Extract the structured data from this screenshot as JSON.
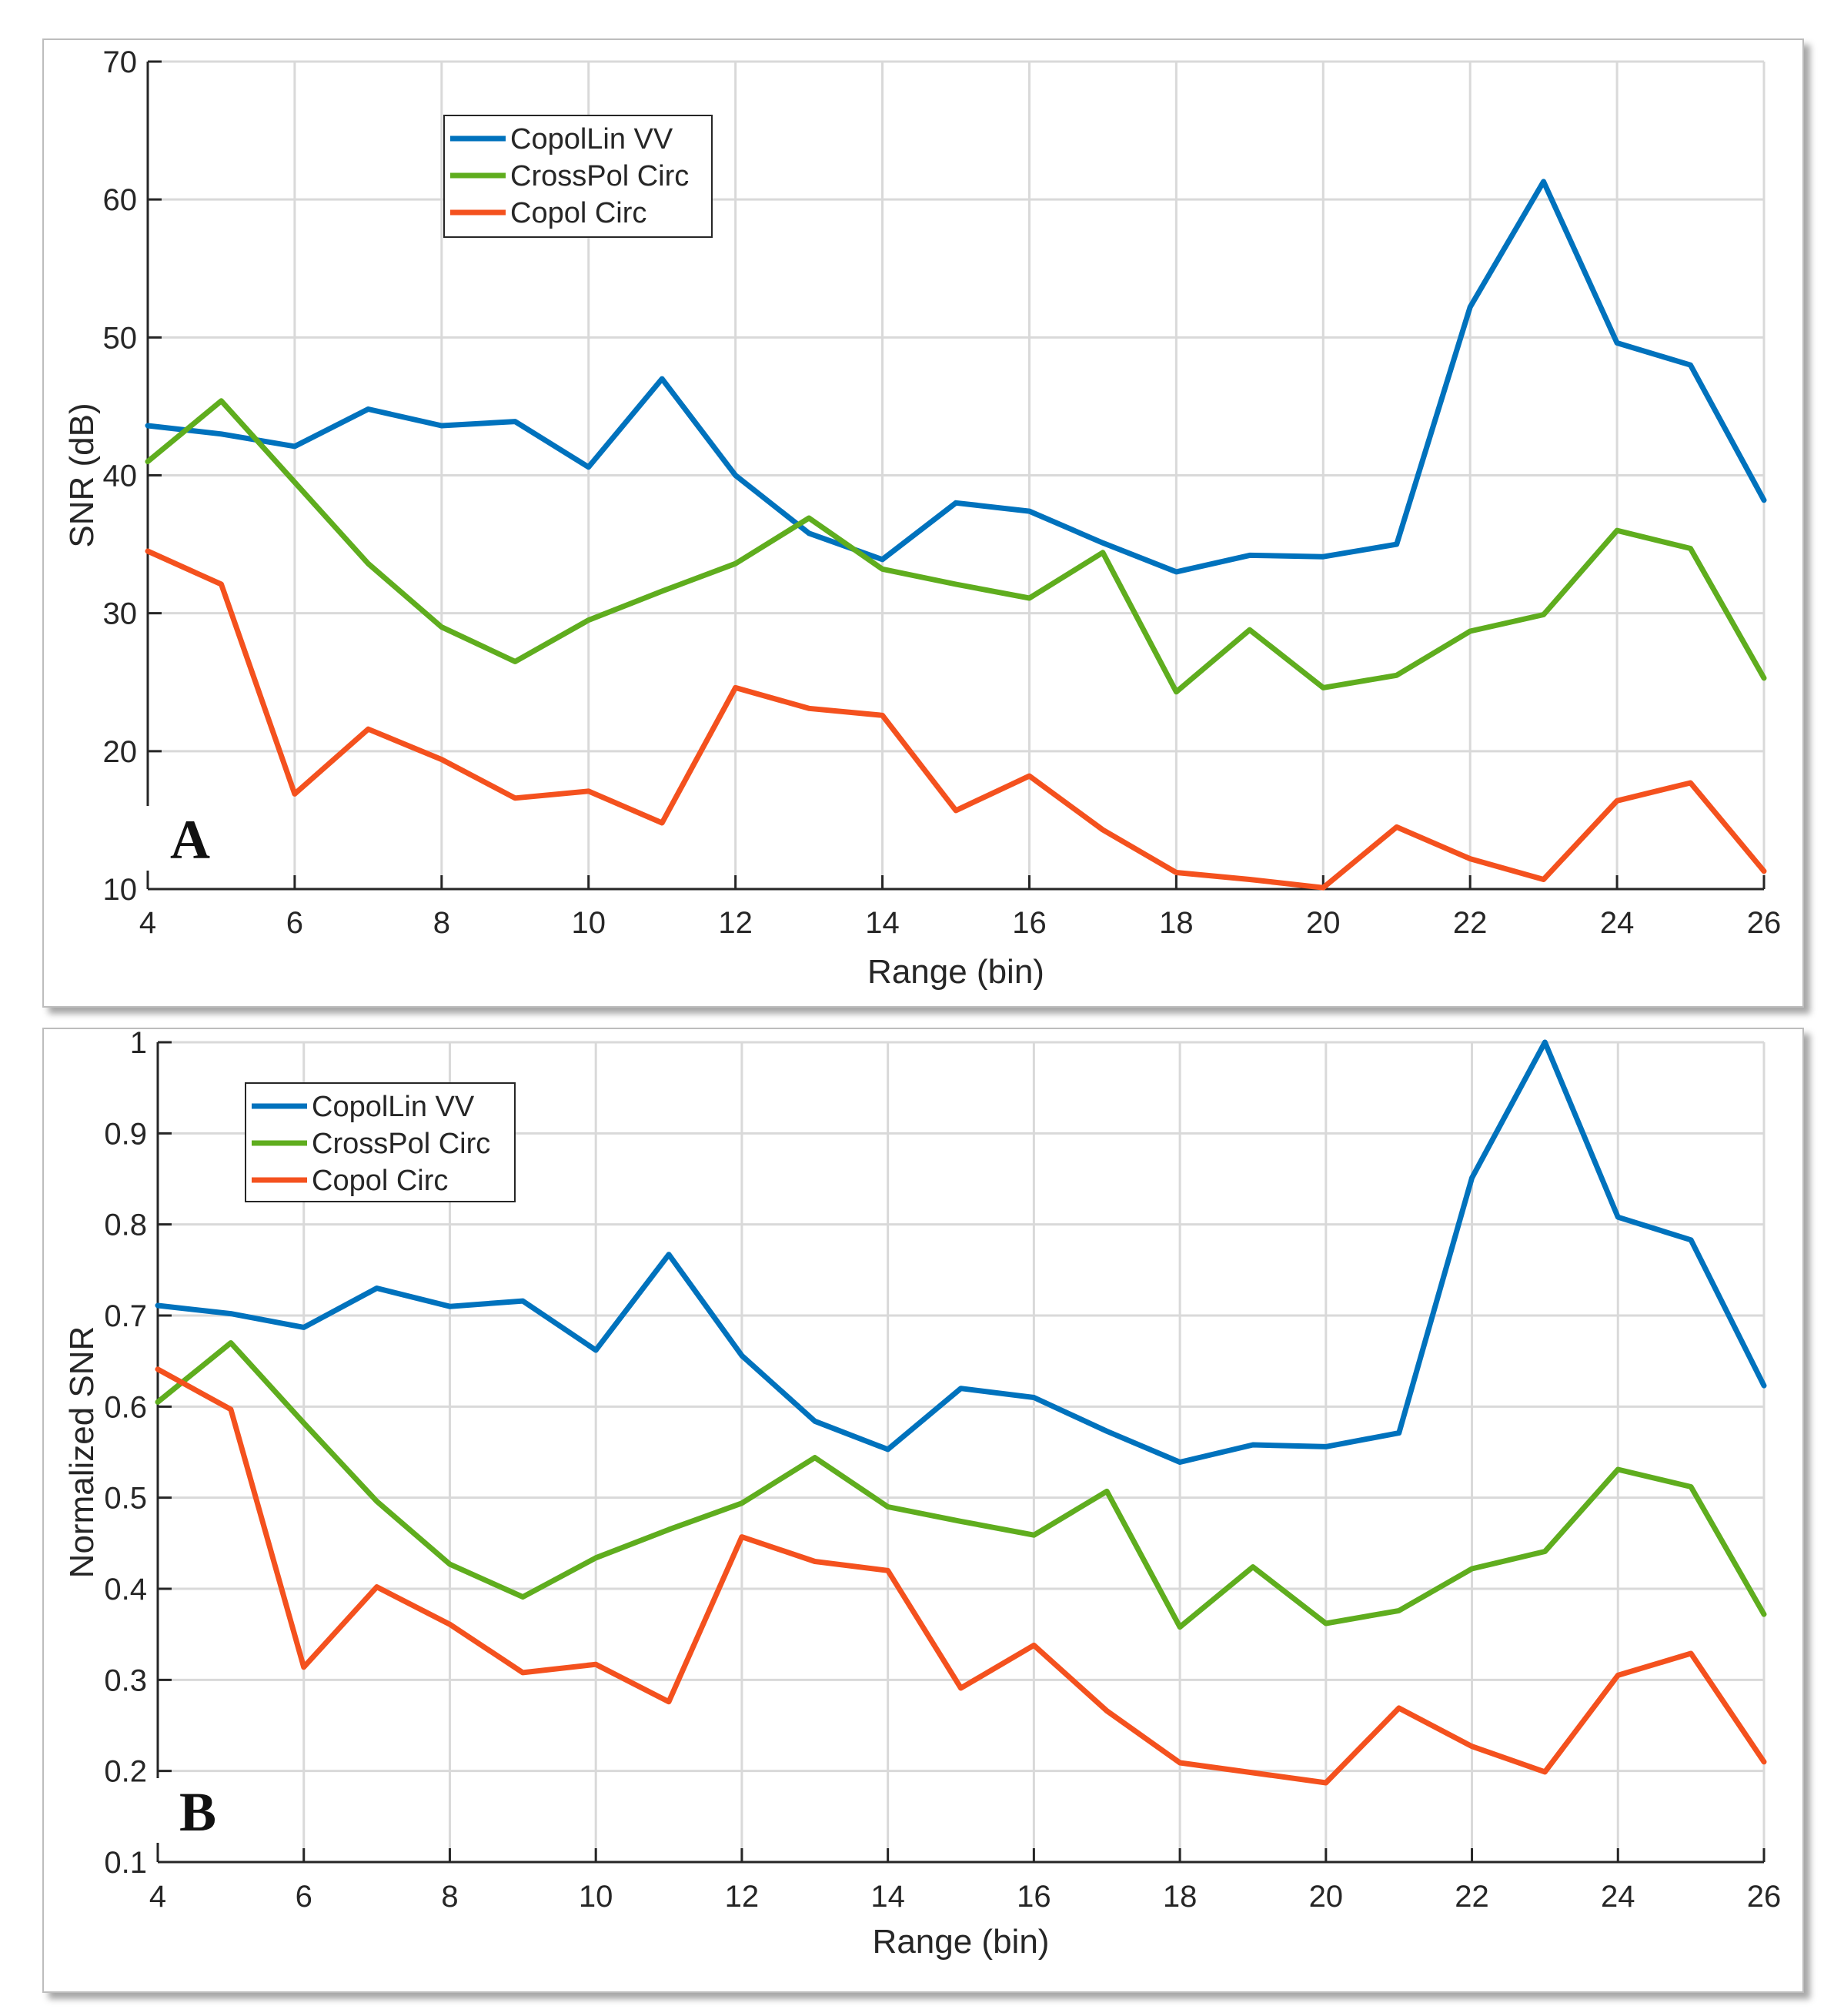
{
  "chart_data": [
    {
      "type": "line",
      "panel_label": "A",
      "xlabel": "Range (bin)",
      "ylabel": "SNR (dB)",
      "xlim": [
        4,
        26
      ],
      "ylim": [
        10,
        70
      ],
      "xticks": [
        4,
        6,
        8,
        10,
        12,
        14,
        16,
        18,
        20,
        22,
        24,
        26
      ],
      "yticks": [
        10,
        20,
        30,
        40,
        50,
        60,
        70
      ],
      "grid": true,
      "legend_position": "top-left",
      "x": [
        4,
        5,
        6,
        7,
        8,
        9,
        10,
        11,
        12,
        13,
        14,
        15,
        16,
        17,
        18,
        19,
        20,
        21,
        22,
        23,
        24,
        25,
        26
      ],
      "series": [
        {
          "name": "CopolLin VV",
          "color": "#0072BD",
          "values": [
            43.6,
            43.0,
            42.1,
            44.8,
            43.6,
            43.9,
            40.6,
            47.0,
            40.0,
            35.8,
            33.9,
            38.0,
            37.4,
            35.1,
            33.0,
            34.2,
            34.1,
            35.0,
            52.2,
            61.3,
            49.6,
            48.0,
            38.2
          ]
        },
        {
          "name": "CrossPol Circ",
          "color": "#5FAD1E",
          "values": [
            41.0,
            45.4,
            39.5,
            33.6,
            29.0,
            26.5,
            29.5,
            31.6,
            33.6,
            36.9,
            33.2,
            32.1,
            31.1,
            34.4,
            24.3,
            28.8,
            24.6,
            25.5,
            28.7,
            29.9,
            36.0,
            34.7,
            25.3
          ]
        },
        {
          "name": "Copol Circ",
          "color": "#F4511E",
          "values": [
            34.5,
            32.1,
            16.9,
            21.6,
            19.4,
            16.6,
            17.1,
            14.8,
            24.6,
            23.1,
            22.6,
            15.7,
            18.2,
            14.3,
            11.2,
            10.7,
            10.1,
            14.5,
            12.2,
            10.7,
            16.4,
            17.7,
            11.3
          ]
        }
      ]
    },
    {
      "type": "line",
      "panel_label": "B",
      "xlabel": "Range (bin)",
      "ylabel": "Normalized SNR",
      "xlim": [
        4,
        26
      ],
      "ylim": [
        0.1,
        1
      ],
      "xticks": [
        4,
        6,
        8,
        10,
        12,
        14,
        16,
        18,
        20,
        22,
        24,
        26
      ],
      "yticks": [
        0.1,
        0.2,
        0.3,
        0.4,
        0.5,
        0.6,
        0.7,
        0.8,
        0.9,
        1
      ],
      "grid": true,
      "legend_position": "top-left",
      "x": [
        4,
        5,
        6,
        7,
        8,
        9,
        10,
        11,
        12,
        13,
        14,
        15,
        16,
        17,
        18,
        19,
        20,
        21,
        22,
        23,
        24,
        25,
        26
      ],
      "series": [
        {
          "name": "CopolLin VV",
          "color": "#0072BD",
          "values": [
            0.711,
            0.702,
            0.687,
            0.73,
            0.71,
            0.716,
            0.662,
            0.767,
            0.656,
            0.584,
            0.553,
            0.62,
            0.61,
            0.573,
            0.539,
            0.558,
            0.556,
            0.571,
            0.851,
            1.0,
            0.808,
            0.783,
            0.623
          ]
        },
        {
          "name": "CrossPol Circ",
          "color": "#5FAD1E",
          "values": [
            0.605,
            0.67,
            0.582,
            0.496,
            0.427,
            0.391,
            0.434,
            0.465,
            0.494,
            0.544,
            0.49,
            0.474,
            0.459,
            0.507,
            0.358,
            0.424,
            0.362,
            0.376,
            0.422,
            0.441,
            0.531,
            0.512,
            0.372
          ]
        },
        {
          "name": "Copol Circ",
          "color": "#F4511E",
          "values": [
            0.641,
            0.597,
            0.314,
            0.402,
            0.361,
            0.308,
            0.317,
            0.276,
            0.457,
            0.43,
            0.42,
            0.291,
            0.338,
            0.266,
            0.209,
            0.198,
            0.187,
            0.269,
            0.227,
            0.199,
            0.305,
            0.329,
            0.21
          ]
        }
      ]
    }
  ]
}
